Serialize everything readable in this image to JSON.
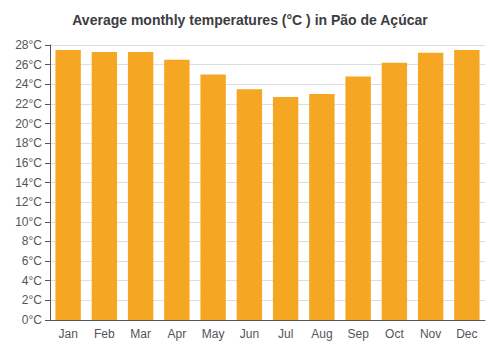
{
  "chart_data": {
    "type": "bar",
    "title": "Average monthly temperatures (°C ) in Pão de Açúcar",
    "categories": [
      "Jan",
      "Feb",
      "Mar",
      "Apr",
      "May",
      "Jun",
      "Jul",
      "Aug",
      "Sep",
      "Oct",
      "Nov",
      "Dec"
    ],
    "values": [
      27.5,
      27.3,
      27.3,
      26.5,
      25.0,
      23.5,
      22.7,
      23.0,
      24.8,
      26.2,
      27.2,
      27.5
    ],
    "color": "#F5A623",
    "ylim": [
      0,
      28
    ],
    "yticks": [
      {
        "value": 0,
        "label": "0°C"
      },
      {
        "value": 2,
        "label": "2°C"
      },
      {
        "value": 4,
        "label": "4°C"
      },
      {
        "value": 6,
        "label": "6°C"
      },
      {
        "value": 8,
        "label": "8°C"
      },
      {
        "value": 10,
        "label": "10°C"
      },
      {
        "value": 12,
        "label": "12°C"
      },
      {
        "value": 14,
        "label": "14°C"
      },
      {
        "value": 16,
        "label": "16°C"
      },
      {
        "value": 18,
        "label": "18°C"
      },
      {
        "value": 20,
        "label": "20°C"
      },
      {
        "value": 22,
        "label": "22°C"
      },
      {
        "value": 24,
        "label": "24°C"
      },
      {
        "value": 26,
        "label": "26°C"
      },
      {
        "value": 28,
        "label": "28°C"
      }
    ],
    "grid": true
  }
}
